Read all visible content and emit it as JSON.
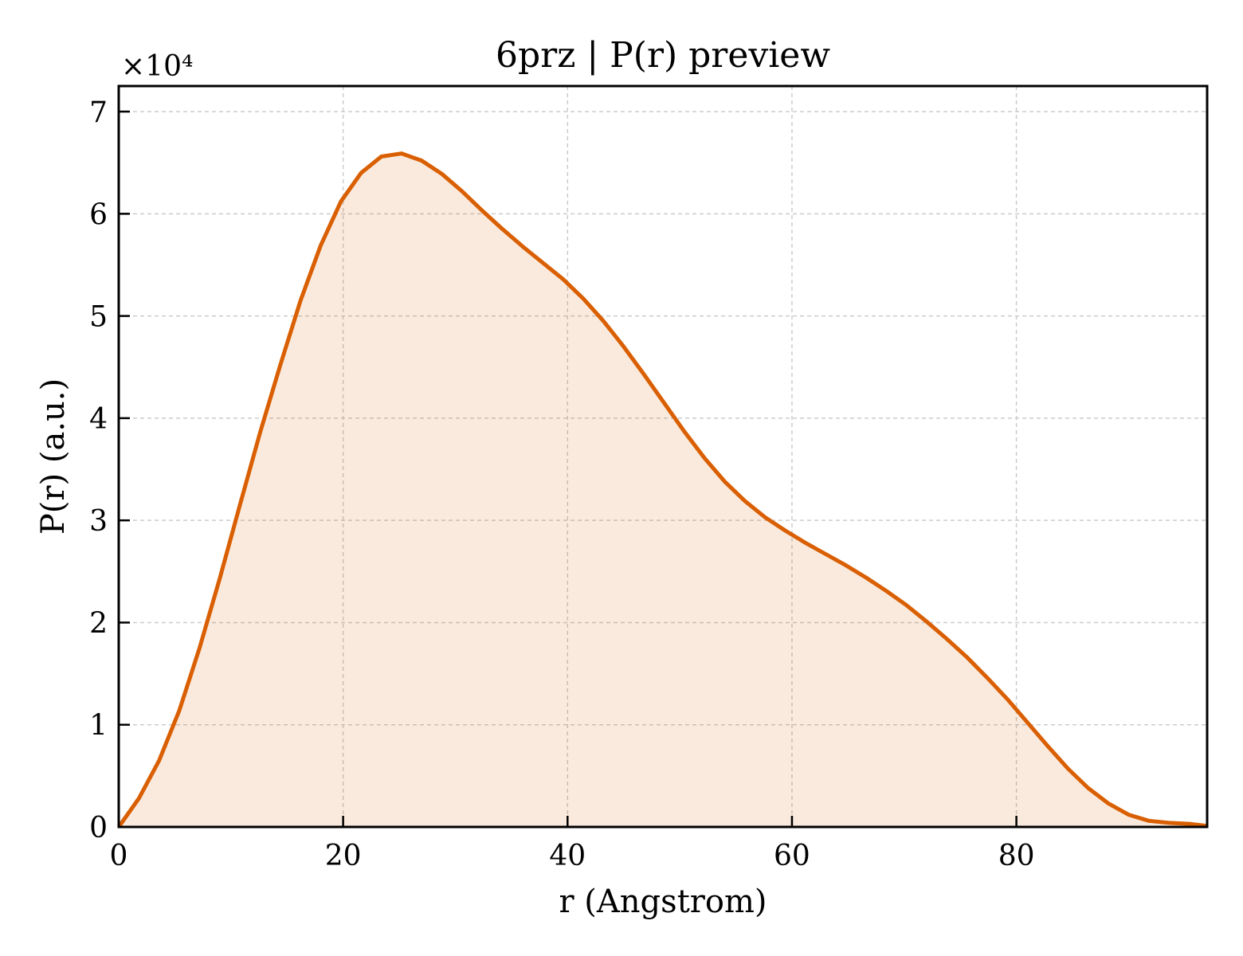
{
  "chart_data": {
    "type": "area",
    "title": "6prz | P(r) preview",
    "xlabel": "r (Angstrom)",
    "ylabel": "P(r) (a.u.)",
    "y_multiplier_label": "×10⁴",
    "y_scale_factor": 10000,
    "xlim": [
      0,
      97
    ],
    "ylim": [
      0,
      72500
    ],
    "x_ticks": [
      0,
      20,
      40,
      60,
      80
    ],
    "y_ticks": [
      0,
      1,
      2,
      3,
      4,
      5,
      6,
      7
    ],
    "grid": true,
    "legend": "none",
    "colors": {
      "line": "#d95f02",
      "fill": "#d95f02",
      "grid": "#cccccc",
      "frame": "#000000"
    },
    "series": [
      {
        "x": [
          0,
          1.8,
          3.6,
          5.4,
          7.2,
          9.0,
          10.8,
          12.6,
          14.4,
          16.2,
          18.0,
          19.8,
          21.6,
          23.4,
          25.2,
          27.0,
          28.8,
          30.6,
          32.4,
          34.2,
          36.0,
          37.8,
          39.6,
          41.4,
          43.2,
          45.0,
          46.8,
          48.6,
          50.4,
          52.2,
          54.0,
          55.8,
          57.6,
          59.4,
          61.2,
          63.0,
          64.8,
          66.6,
          68.4,
          70.2,
          72.0,
          73.8,
          75.6,
          77.4,
          79.2,
          81.0,
          82.8,
          84.6,
          86.4,
          88.2,
          90.0,
          91.8,
          93.6,
          95.4,
          97.0
        ],
        "y": [
          0,
          2800,
          6500,
          11400,
          17500,
          24300,
          31500,
          38600,
          45200,
          51500,
          56900,
          61200,
          64000,
          65600,
          65900,
          65200,
          63900,
          62200,
          60300,
          58500,
          56800,
          55200,
          53600,
          51700,
          49500,
          47000,
          44300,
          41500,
          38700,
          36100,
          33800,
          31900,
          30300,
          29000,
          27800,
          26700,
          25600,
          24400,
          23100,
          21700,
          20100,
          18400,
          16600,
          14600,
          12500,
          10200,
          7900,
          5700,
          3800,
          2300,
          1200,
          600,
          400,
          300,
          100
        ]
      }
    ]
  }
}
